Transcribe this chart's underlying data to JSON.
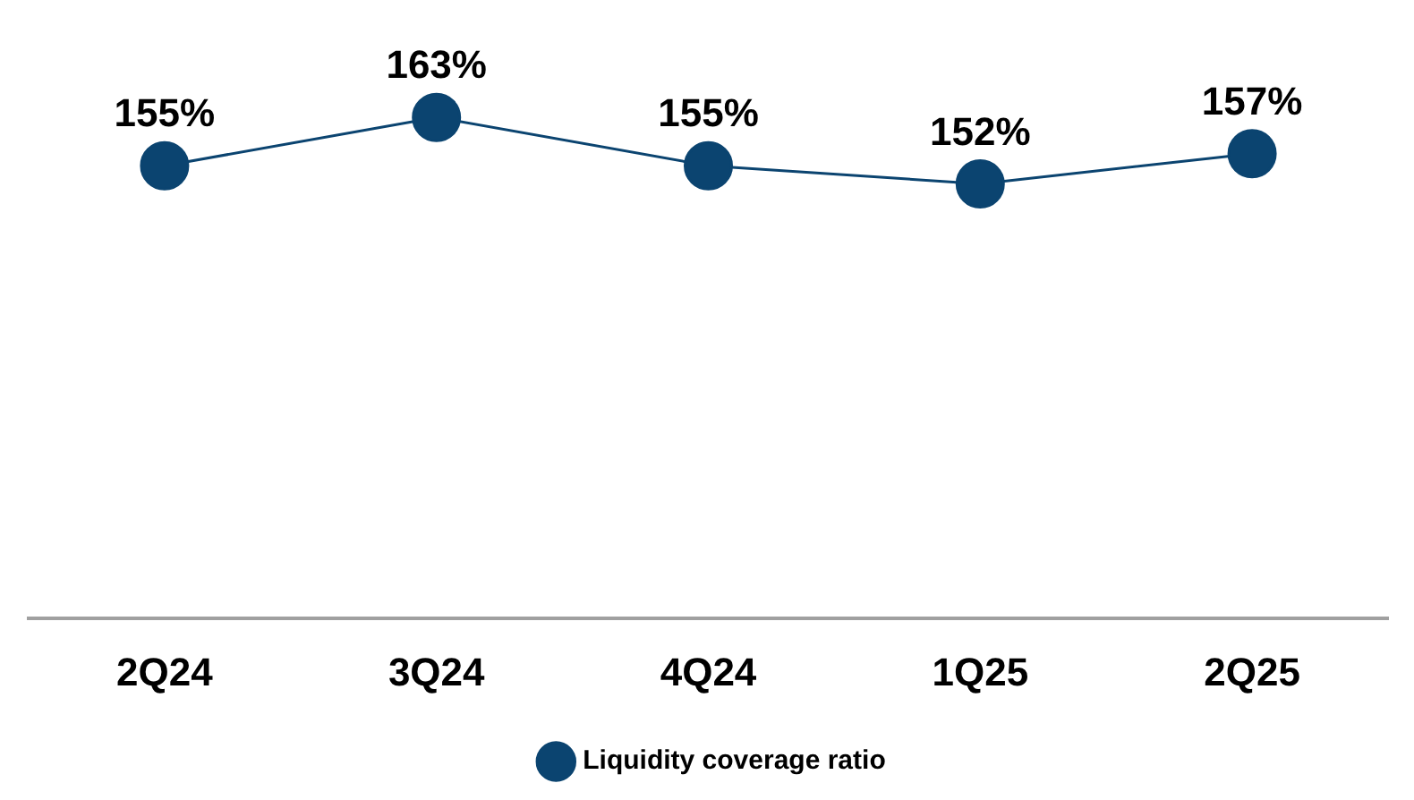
{
  "chart_data": {
    "type": "line",
    "categories": [
      "2Q24",
      "3Q24",
      "4Q24",
      "1Q25",
      "2Q25"
    ],
    "series": [
      {
        "name": "Liquidity coverage ratio",
        "color": "#0b4470",
        "values": [
          155,
          163,
          155,
          152,
          157
        ],
        "value_labels": [
          "155%",
          "163%",
          "155%",
          "152%",
          "157%"
        ]
      }
    ],
    "tick_labels": "x",
    "legend": "bottom",
    "marker": "circle",
    "line_style": "solid"
  }
}
